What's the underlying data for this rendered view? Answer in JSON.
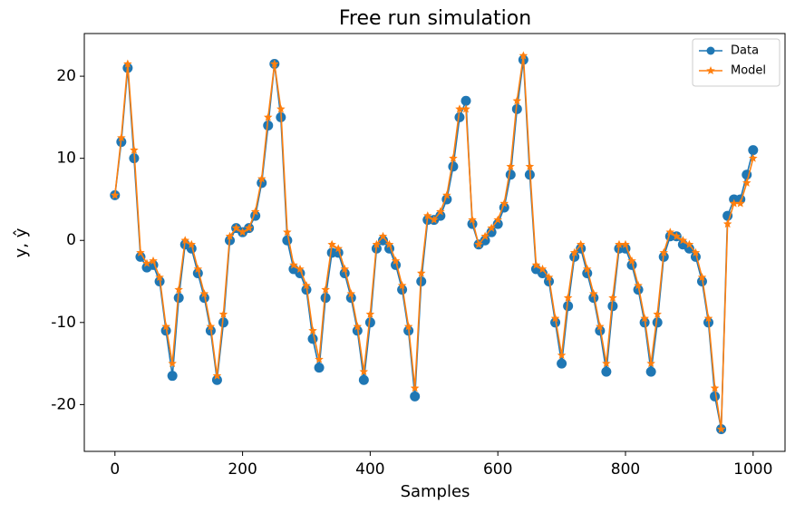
{
  "chart_data": {
    "type": "line",
    "title": "Free run simulation",
    "xlabel": "Samples",
    "ylabel": "y, ŷ",
    "x": [
      0,
      10,
      20,
      30,
      40,
      50,
      60,
      70,
      80,
      90,
      100,
      110,
      120,
      130,
      140,
      150,
      160,
      170,
      180,
      190,
      200,
      210,
      220,
      230,
      240,
      250,
      260,
      270,
      280,
      290,
      300,
      310,
      320,
      330,
      340,
      350,
      360,
      370,
      380,
      390,
      400,
      410,
      420,
      430,
      440,
      450,
      460,
      470,
      480,
      490,
      500,
      510,
      520,
      530,
      540,
      550,
      560,
      570,
      580,
      590,
      600,
      610,
      620,
      630,
      640,
      650,
      660,
      670,
      680,
      690,
      700,
      710,
      720,
      730,
      740,
      750,
      760,
      770,
      780,
      790,
      800,
      810,
      820,
      830,
      840,
      850,
      860,
      870,
      880,
      890,
      900,
      910,
      920,
      930,
      940,
      950,
      960,
      970,
      980,
      990,
      1000
    ],
    "series": [
      {
        "name": "Data",
        "color": "#1f77b4",
        "marker": "circle",
        "values": [
          5.5,
          12,
          21,
          10,
          -2,
          -3.3,
          -3,
          -5,
          -11,
          -16.5,
          -7,
          -0.5,
          -1,
          -4,
          -7,
          -11,
          -17,
          -10,
          0,
          1.5,
          1,
          1.5,
          3,
          7,
          14,
          21.5,
          15,
          0,
          -3.5,
          -4,
          -6,
          -12,
          -15.5,
          -7,
          -1.5,
          -1.5,
          -4,
          -7,
          -11,
          -17,
          -10,
          -1,
          0,
          -1,
          -3,
          -6,
          -11,
          -19,
          -5,
          2.5,
          2.5,
          3,
          5,
          9,
          15,
          17,
          2,
          -0.5,
          0,
          1,
          2,
          4,
          8,
          16,
          22,
          8,
          -3.5,
          -4,
          -5,
          -10,
          -15,
          -8,
          -2,
          -1,
          -4,
          -7,
          -11,
          -16,
          -8,
          -1,
          -1,
          -3,
          -6,
          -10,
          -16,
          -10,
          -2,
          0.5,
          0.5,
          -0.5,
          -1,
          -2,
          -5,
          -10,
          -19,
          -23,
          3,
          5,
          5,
          8,
          11
        ]
      },
      {
        "name": "Model",
        "color": "#ff7f0e",
        "marker": "star",
        "values": [
          5.5,
          12.5,
          21.5,
          11,
          -1.5,
          -2.8,
          -2.5,
          -4.5,
          -10.5,
          -15,
          -6,
          0,
          -0.5,
          -3.5,
          -6.5,
          -10.5,
          -16.5,
          -9,
          0.5,
          1.5,
          1,
          1.5,
          3.5,
          7.5,
          15,
          21.5,
          16,
          1,
          -3,
          -3.5,
          -5.5,
          -11,
          -14.5,
          -6,
          -0.5,
          -1,
          -3.5,
          -6.5,
          -10.5,
          -16,
          -9,
          -0.5,
          0.5,
          -0.5,
          -2.5,
          -5.5,
          -10.5,
          -18,
          -4,
          3,
          2.5,
          3.5,
          5.5,
          10,
          16,
          16,
          2.5,
          -0.5,
          0.5,
          1.5,
          2.5,
          4.5,
          9,
          17,
          22.5,
          9,
          -3,
          -3.5,
          -4.5,
          -9.5,
          -14,
          -7,
          -1.5,
          -0.5,
          -3.5,
          -6.5,
          -10.5,
          -15,
          -7,
          -0.5,
          -0.5,
          -2.5,
          -5.5,
          -9.5,
          -15,
          -9,
          -1.5,
          1,
          0.5,
          0,
          -0.5,
          -1.5,
          -4.5,
          -9.5,
          -18,
          -23,
          2,
          4.5,
          4.5,
          7,
          10
        ]
      }
    ],
    "xlim": [
      -48,
      1050
    ],
    "ylim": [
      -25.7,
      25.2
    ],
    "xticks": [
      0,
      200,
      400,
      600,
      800,
      1000
    ],
    "yticks": [
      -20,
      -10,
      0,
      10,
      20
    ],
    "legend": "upper right"
  }
}
